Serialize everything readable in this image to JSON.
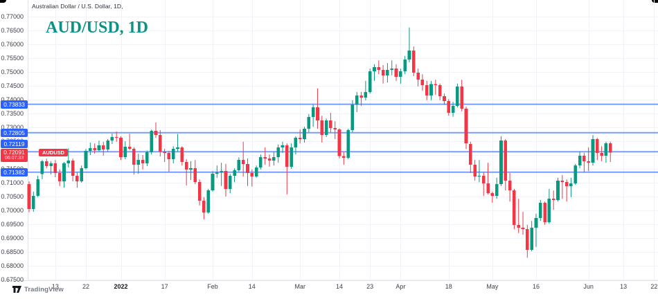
{
  "window": {
    "legend": "Australian Dollar / U.S. Dollar, 1D,"
  },
  "watermark": {
    "text": "AUD/USD, 1D"
  },
  "branding": {
    "logo_text": "TradingView"
  },
  "colors": {
    "up": "#089981",
    "down": "#f23645",
    "price_line": "#5f8bff",
    "line_badge_bg": "#2962ff",
    "current_badge_bg": "#f23645",
    "symbol_tag_bg": "#f23645",
    "grid": "#f0f2f7",
    "axis_border": "#dfe2e9",
    "axis_text": "#3a3e47",
    "legend_text": "#2a2e39",
    "watermark": "#0a9384",
    "logo_text": "#787b86",
    "logo_glyph": "#131722"
  },
  "y_axis": {
    "labels": [
      "0.77000",
      "0.76500",
      "0.76000",
      "0.75500",
      "0.75000",
      "0.74500",
      "0.74000",
      "0.73500",
      "0.73000",
      "0.72500",
      "0.72000",
      "0.71500",
      "0.71000",
      "0.70500",
      "0.70000",
      "0.69500",
      "0.69000",
      "0.68500",
      "0.68000",
      "0.67500"
    ]
  },
  "x_axis": {
    "ticks": [
      {
        "i": 6,
        "label": "13"
      },
      {
        "i": 13,
        "label": "22"
      },
      {
        "i": 21,
        "label": "2022",
        "bold": true
      },
      {
        "i": 31,
        "label": "17"
      },
      {
        "i": 42,
        "label": "Feb"
      },
      {
        "i": 51,
        "label": "14"
      },
      {
        "i": 62,
        "label": "Mar"
      },
      {
        "i": 71,
        "label": "14"
      },
      {
        "i": 78,
        "label": "23"
      },
      {
        "i": 85,
        "label": "Apr"
      },
      {
        "i": 96,
        "label": "18"
      },
      {
        "i": 106,
        "label": "May"
      },
      {
        "i": 116,
        "label": "16"
      },
      {
        "i": 128,
        "label": "Jun"
      },
      {
        "i": 136,
        "label": "13"
      },
      {
        "i": 143,
        "label": "22"
      }
    ]
  },
  "price_lines": [
    {
      "price": 0.73833,
      "label": "0.73833"
    },
    {
      "price": 0.72805,
      "label": "0.72805"
    },
    {
      "price": 0.72119,
      "label": "0.72119",
      "badge_dy": -11
    },
    {
      "price": 0.71382,
      "label": "0.71382"
    }
  ],
  "current_price": {
    "price": 0.72091,
    "label": "0.72091",
    "countdown": "06:07:33",
    "symbol_tag": "AUDUSD"
  },
  "chart_data": {
    "type": "candlestick",
    "title": "AUD/USD, 1D",
    "ylim": [
      0.675,
      0.77
    ],
    "y_step": 0.005,
    "grid": true,
    "x_tick_labels": [
      "13",
      "22",
      "2022",
      "17",
      "Feb",
      "14",
      "Mar",
      "14",
      "23",
      "Apr",
      "18",
      "May",
      "16",
      "Jun",
      "13",
      "22"
    ],
    "candles": [
      [
        0.7095,
        0.7105,
        0.6993,
        0.7005
      ],
      [
        0.7005,
        0.7068,
        0.6995,
        0.7052
      ],
      [
        0.7052,
        0.7125,
        0.7048,
        0.7113
      ],
      [
        0.7131,
        0.7183,
        0.7113,
        0.7177
      ],
      [
        0.7177,
        0.7187,
        0.7152,
        0.716
      ],
      [
        0.716,
        0.7178,
        0.713,
        0.717
      ],
      [
        0.717,
        0.7182,
        0.712,
        0.7135
      ],
      [
        0.7135,
        0.7148,
        0.7088,
        0.7105
      ],
      [
        0.7105,
        0.7175,
        0.7082,
        0.717
      ],
      [
        0.717,
        0.7224,
        0.7155,
        0.718
      ],
      [
        0.718,
        0.7187,
        0.7105,
        0.7125
      ],
      [
        0.7125,
        0.7138,
        0.7082,
        0.7105
      ],
      [
        0.7105,
        0.7162,
        0.71,
        0.7152
      ],
      [
        0.7152,
        0.7222,
        0.7148,
        0.7215
      ],
      [
        0.7215,
        0.7245,
        0.72,
        0.7225
      ],
      [
        0.7225,
        0.7242,
        0.7205,
        0.7218
      ],
      [
        0.7218,
        0.7252,
        0.7212,
        0.7235
      ],
      [
        0.7235,
        0.7248,
        0.7198,
        0.722
      ],
      [
        0.722,
        0.7258,
        0.7212,
        0.7252
      ],
      [
        0.7252,
        0.7278,
        0.724,
        0.7265
      ],
      [
        0.7265,
        0.7285,
        0.7248,
        0.7262
      ],
      [
        0.7262,
        0.7268,
        0.7182,
        0.7192
      ],
      [
        0.7192,
        0.725,
        0.7185,
        0.723
      ],
      [
        0.723,
        0.7277,
        0.7218,
        0.7222
      ],
      [
        0.7222,
        0.7228,
        0.713,
        0.7165
      ],
      [
        0.7165,
        0.7205,
        0.7132,
        0.7182
      ],
      [
        0.7182,
        0.72,
        0.7148,
        0.717
      ],
      [
        0.717,
        0.7216,
        0.716,
        0.721
      ],
      [
        0.721,
        0.7292,
        0.7202,
        0.7288
      ],
      [
        0.7288,
        0.7318,
        0.7262,
        0.7272
      ],
      [
        0.7272,
        0.729,
        0.7195,
        0.7212
      ],
      [
        0.7212,
        0.7222,
        0.7175,
        0.7208
      ],
      [
        0.7208,
        0.7215,
        0.714,
        0.7185
      ],
      [
        0.7185,
        0.7232,
        0.717,
        0.7222
      ],
      [
        0.7222,
        0.7276,
        0.7212,
        0.7228
      ],
      [
        0.7228,
        0.7232,
        0.7162,
        0.7175
      ],
      [
        0.7175,
        0.7185,
        0.709,
        0.7148
      ],
      [
        0.7148,
        0.7178,
        0.711,
        0.7152
      ],
      [
        0.7152,
        0.7182,
        0.7095,
        0.7102
      ],
      [
        0.7102,
        0.7112,
        0.7018,
        0.7035
      ],
      [
        0.7035,
        0.7048,
        0.6968,
        0.6992
      ],
      [
        0.6992,
        0.7078,
        0.6988,
        0.7072
      ],
      [
        0.7072,
        0.7142,
        0.7068,
        0.7132
      ],
      [
        0.7132,
        0.7162,
        0.7118,
        0.7138
      ],
      [
        0.7138,
        0.7172,
        0.7088,
        0.7142
      ],
      [
        0.7142,
        0.7168,
        0.705,
        0.7078
      ],
      [
        0.7078,
        0.7132,
        0.7062,
        0.7125
      ],
      [
        0.7125,
        0.7152,
        0.7102,
        0.7145
      ],
      [
        0.7145,
        0.7192,
        0.714,
        0.7182
      ],
      [
        0.7182,
        0.7248,
        0.7122,
        0.7168
      ],
      [
        0.7168,
        0.7188,
        0.7088,
        0.7135
      ],
      [
        0.7135,
        0.7148,
        0.7086,
        0.7122
      ],
      [
        0.7122,
        0.7162,
        0.7118,
        0.7155
      ],
      [
        0.7155,
        0.7202,
        0.7148,
        0.7192
      ],
      [
        0.7192,
        0.7228,
        0.7165,
        0.7188
      ],
      [
        0.7188,
        0.7202,
        0.7158,
        0.718
      ],
      [
        0.718,
        0.7212,
        0.7162,
        0.7192
      ],
      [
        0.7192,
        0.7238,
        0.7172,
        0.7228
      ],
      [
        0.7228,
        0.7248,
        0.7208,
        0.7235
      ],
      [
        0.7235,
        0.7242,
        0.7058,
        0.7158
      ],
      [
        0.7158,
        0.7242,
        0.715,
        0.7228
      ],
      [
        0.7228,
        0.7268,
        0.7202,
        0.7262
      ],
      [
        0.7262,
        0.7292,
        0.7242,
        0.7258
      ],
      [
        0.7258,
        0.7302,
        0.7245,
        0.7295
      ],
      [
        0.7295,
        0.7348,
        0.7282,
        0.7338
      ],
      [
        0.7338,
        0.7382,
        0.7302,
        0.7372
      ],
      [
        0.7372,
        0.7441,
        0.7295,
        0.7325
      ],
      [
        0.7325,
        0.7342,
        0.7245,
        0.7272
      ],
      [
        0.7272,
        0.7332,
        0.7265,
        0.7325
      ],
      [
        0.7325,
        0.7352,
        0.7282,
        0.7298
      ],
      [
        0.7298,
        0.7322,
        0.7258,
        0.7292
      ],
      [
        0.7292,
        0.7296,
        0.7188,
        0.7196
      ],
      [
        0.7196,
        0.721,
        0.7165,
        0.719
      ],
      [
        0.719,
        0.7295,
        0.7185,
        0.729
      ],
      [
        0.729,
        0.7398,
        0.7282,
        0.7382
      ],
      [
        0.7382,
        0.7428,
        0.7355,
        0.7415
      ],
      [
        0.7415,
        0.7428,
        0.7378,
        0.7408
      ],
      [
        0.7408,
        0.7468,
        0.7398,
        0.7428
      ],
      [
        0.7428,
        0.7512,
        0.7422,
        0.7502
      ],
      [
        0.7502,
        0.7528,
        0.7468,
        0.7518
      ],
      [
        0.7518,
        0.7542,
        0.7492,
        0.7508
      ],
      [
        0.7508,
        0.7525,
        0.7458,
        0.7488
      ],
      [
        0.7488,
        0.7532,
        0.7462,
        0.7508
      ],
      [
        0.7508,
        0.7542,
        0.7488,
        0.7512
      ],
      [
        0.7512,
        0.7528,
        0.7468,
        0.7482
      ],
      [
        0.7482,
        0.7512,
        0.7458,
        0.7502
      ],
      [
        0.7502,
        0.7558,
        0.7492,
        0.7545
      ],
      [
        0.7545,
        0.7661,
        0.7535,
        0.7577
      ],
      [
        0.7577,
        0.7592,
        0.7485,
        0.7498
      ],
      [
        0.7498,
        0.7512,
        0.7448,
        0.7472
      ],
      [
        0.7472,
        0.7492,
        0.7432,
        0.7452
      ],
      [
        0.7452,
        0.7468,
        0.7398,
        0.7415
      ],
      [
        0.7415,
        0.7468,
        0.7398,
        0.7456
      ],
      [
        0.7456,
        0.7472,
        0.7418,
        0.7452
      ],
      [
        0.7452,
        0.7458,
        0.7398,
        0.7412
      ],
      [
        0.7412,
        0.7422,
        0.7382,
        0.7395
      ],
      [
        0.7395,
        0.7402,
        0.7342,
        0.7352
      ],
      [
        0.7352,
        0.7392,
        0.7338,
        0.7378
      ],
      [
        0.7378,
        0.7458,
        0.7372,
        0.7448
      ],
      [
        0.7448,
        0.7472,
        0.7358,
        0.7368
      ],
      [
        0.7368,
        0.7375,
        0.7222,
        0.7242
      ],
      [
        0.724,
        0.7248,
        0.7135,
        0.7165
      ],
      [
        0.7165,
        0.7182,
        0.7108,
        0.7122
      ],
      [
        0.7122,
        0.7182,
        0.7102,
        0.7125
      ],
      [
        0.7125,
        0.7138,
        0.7052,
        0.7098
      ],
      [
        0.7098,
        0.7172,
        0.7058,
        0.7062
      ],
      [
        0.7062,
        0.7068,
        0.7028,
        0.7052
      ],
      [
        0.7052,
        0.7118,
        0.7042,
        0.7095
      ],
      [
        0.7095,
        0.7268,
        0.7088,
        0.7252
      ],
      [
        0.7252,
        0.7258,
        0.7072,
        0.7108
      ],
      [
        0.7108,
        0.7135,
        0.7032,
        0.7072
      ],
      [
        0.7072,
        0.7078,
        0.6932,
        0.6948
      ],
      [
        0.6948,
        0.7042,
        0.6918,
        0.6938
      ],
      [
        0.6938,
        0.6995,
        0.6912,
        0.6932
      ],
      [
        0.6932,
        0.6948,
        0.6829,
        0.6858
      ],
      [
        0.6858,
        0.6962,
        0.6852,
        0.6938
      ],
      [
        0.6938,
        0.6988,
        0.6868,
        0.6972
      ],
      [
        0.6972,
        0.7038,
        0.6962,
        0.7028
      ],
      [
        0.7028,
        0.7032,
        0.6948,
        0.6958
      ],
      [
        0.6958,
        0.7078,
        0.6952,
        0.7042
      ],
      [
        0.7042,
        0.7072,
        0.7002,
        0.7038
      ],
      [
        0.7038,
        0.7118,
        0.7032,
        0.7108
      ],
      [
        0.7108,
        0.7128,
        0.7042,
        0.7102
      ],
      [
        0.7102,
        0.7112,
        0.7032,
        0.7088
      ],
      [
        0.7088,
        0.7118,
        0.7048,
        0.7098
      ],
      [
        0.7098,
        0.7168,
        0.7092,
        0.7162
      ],
      [
        0.7162,
        0.7212,
        0.7152,
        0.7198
      ],
      [
        0.7198,
        0.7208,
        0.7138,
        0.7178
      ],
      [
        0.7178,
        0.7228,
        0.7142,
        0.7172
      ],
      [
        0.7172,
        0.7272,
        0.7162,
        0.7258
      ],
      [
        0.7258,
        0.7262,
        0.7182,
        0.7208
      ],
      [
        0.7208,
        0.7232,
        0.7178,
        0.7198
      ],
      [
        0.7198,
        0.7248,
        0.7172,
        0.7242
      ],
      [
        0.7242,
        0.7248,
        0.7175,
        0.7209
      ]
    ]
  }
}
